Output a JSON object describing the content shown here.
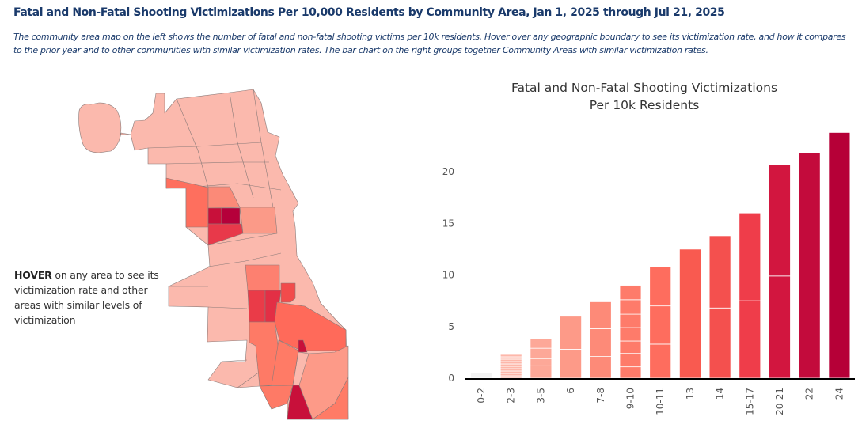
{
  "header": {
    "title": "Fatal and Non-Fatal Shooting Victimizations Per 10,000 Residents by Community Area, Jan 1, 2025 through Jul 21, 2025",
    "description": "The community area map on the left shows the number of fatal and non-fatal shooting victims per 10k residents. Hover over any geographic boundary to see its victimization rate, and how it compares to the prior year and to other communities with similar victimization rates. The bar chart on the right groups together Community Areas with similar victimization rates."
  },
  "map": {
    "hint_bold": "HOVER",
    "hint_text": " on any area to see its victimization rate and other areas with similar levels of victimization",
    "base_color": "#fbb9ad"
  },
  "chart_data": {
    "type": "bar",
    "stacked": true,
    "title_line1": "Fatal and Non-Fatal Shooting Victimizations",
    "title_line2": "Per 10k Residents",
    "xlabel": "",
    "ylabel": "",
    "ylim": [
      0,
      25
    ],
    "yticks": [
      "0",
      "5",
      "10",
      "15",
      "20"
    ],
    "categories": [
      "0-2",
      "2-3",
      "3-5",
      "6",
      "7-8",
      "9-10",
      "10-11",
      "13",
      "14",
      "15-17",
      "20-21",
      "22",
      "24"
    ],
    "values": [
      0.5,
      2.3,
      3.8,
      6.0,
      7.4,
      9.0,
      10.8,
      12.5,
      13.8,
      16.0,
      20.7,
      21.8,
      23.8
    ],
    "segments": [
      [
        0.5
      ],
      [
        0.23,
        0.23,
        0.23,
        0.23,
        0.23,
        0.23,
        0.23,
        0.23,
        0.23,
        0.23
      ],
      [
        0.5,
        0.7,
        0.7,
        1.0,
        0.9
      ],
      [
        2.8,
        3.2
      ],
      [
        2.1,
        2.7,
        2.6
      ],
      [
        1.1,
        1.3,
        1.2,
        1.3,
        1.3,
        1.4,
        1.4
      ],
      [
        3.3,
        3.7,
        3.8
      ],
      [
        12.5
      ],
      [
        6.8,
        7.0
      ],
      [
        7.5,
        8.5
      ],
      [
        9.9,
        10.8
      ],
      [
        21.8
      ],
      [
        23.8
      ]
    ],
    "colors": [
      "#f2f2f2",
      "#fdb7aa",
      "#fda898",
      "#fd9a88",
      "#fd8a78",
      "#fe7b6a",
      "#fe6d5e",
      "#f95a50",
      "#f4504e",
      "#ef3d4a",
      "#d2163f",
      "#c30b3c",
      "#b60037"
    ],
    "grid": false
  }
}
